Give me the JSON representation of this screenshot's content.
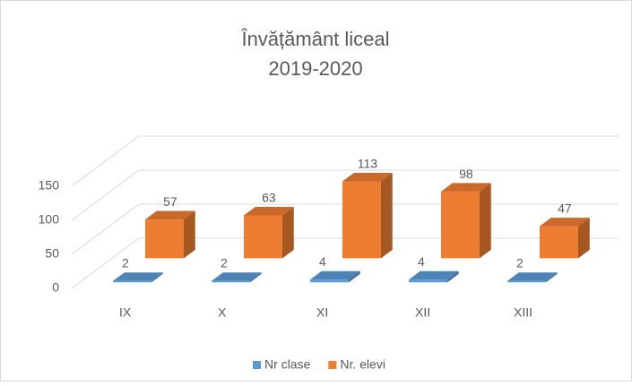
{
  "chart_data": {
    "type": "bar3d",
    "title": "Învățământ liceal",
    "subtitle": "2019-2020",
    "categories": [
      "IX",
      "X",
      "XI",
      "XII",
      "XIII"
    ],
    "series": [
      {
        "name": "Nr clase",
        "color": "#5b9bd5",
        "values": [
          2,
          2,
          4,
          4,
          2
        ]
      },
      {
        "name": "Nr. elevi",
        "color": "#ed7d31",
        "values": [
          57,
          63,
          113,
          98,
          47
        ]
      }
    ],
    "ylim": [
      0,
      150
    ],
    "yticks": [
      0,
      50,
      100,
      150
    ],
    "grid": true,
    "legend": "bottom"
  }
}
